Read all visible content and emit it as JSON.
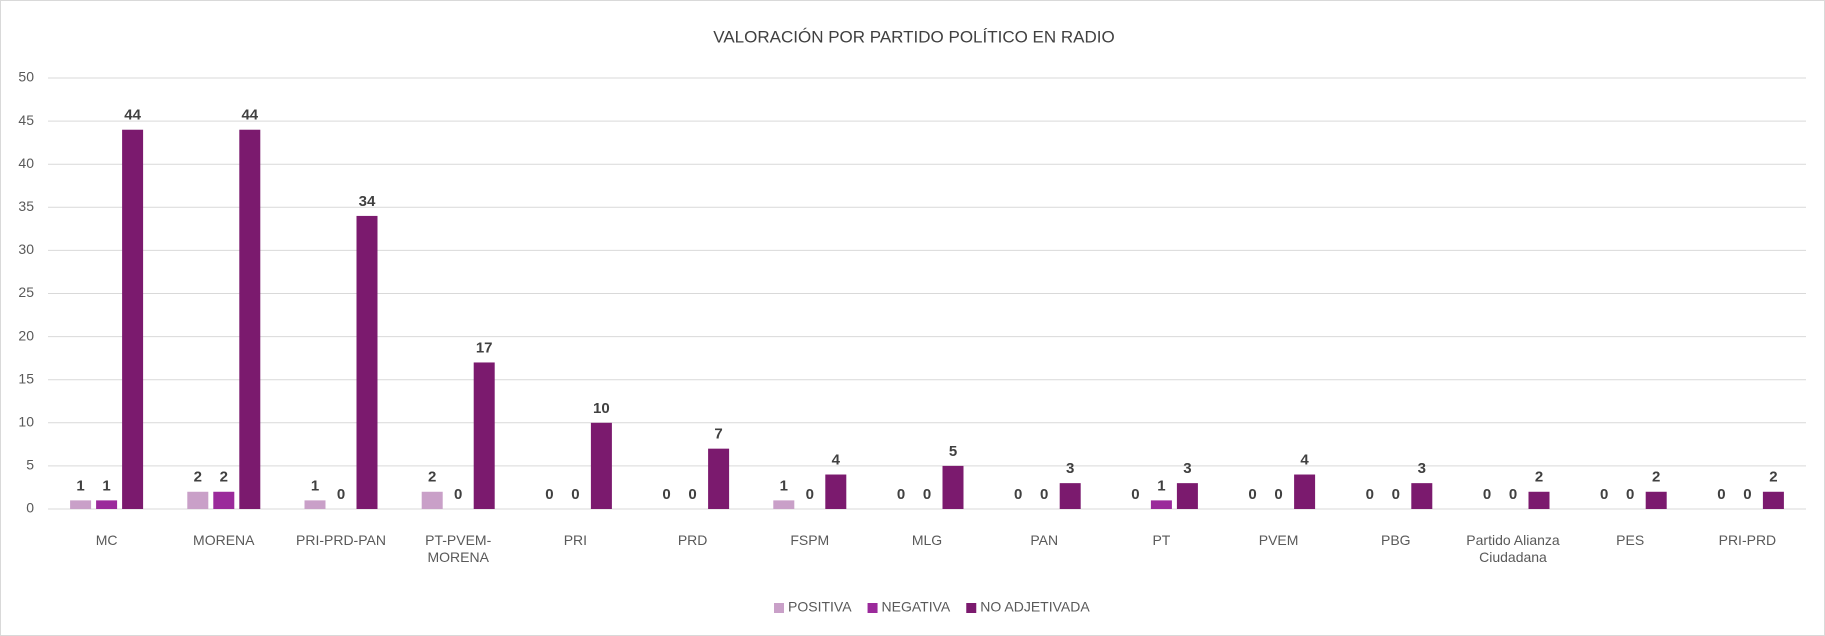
{
  "chart_data": {
    "type": "bar",
    "title": "VALORACIÓN POR PARTIDO POLÍTICO EN RADIO",
    "categories": [
      "MC",
      "MORENA",
      "PRI-PRD-PAN",
      "PT-PVEM-MORENA",
      "PRI",
      "PRD",
      "FSPM",
      "MLG",
      "PAN",
      "PT",
      "PVEM",
      "PBG",
      "Partido Alianza Ciudadana",
      "PES",
      "PRI-PRD"
    ],
    "series": [
      {
        "name": "POSITIVA",
        "color": "#c9a0c8",
        "values": [
          1,
          2,
          1,
          2,
          0,
          0,
          1,
          0,
          0,
          0,
          0,
          0,
          0,
          0,
          0
        ]
      },
      {
        "name": "NEGATIVA",
        "color": "#9b2a9b",
        "values": [
          1,
          2,
          0,
          0,
          0,
          0,
          0,
          0,
          0,
          1,
          0,
          0,
          0,
          0,
          0
        ]
      },
      {
        "name": "NO ADJETIVADA",
        "color": "#7b1a6e",
        "values": [
          44,
          44,
          34,
          17,
          10,
          7,
          4,
          5,
          3,
          3,
          4,
          3,
          2,
          2,
          2
        ]
      }
    ],
    "ylim": [
      0,
      50
    ],
    "yticks": [
      0,
      5,
      10,
      15,
      20,
      25,
      30,
      35,
      40,
      45,
      50
    ],
    "grid": true,
    "legend": "bottom"
  }
}
